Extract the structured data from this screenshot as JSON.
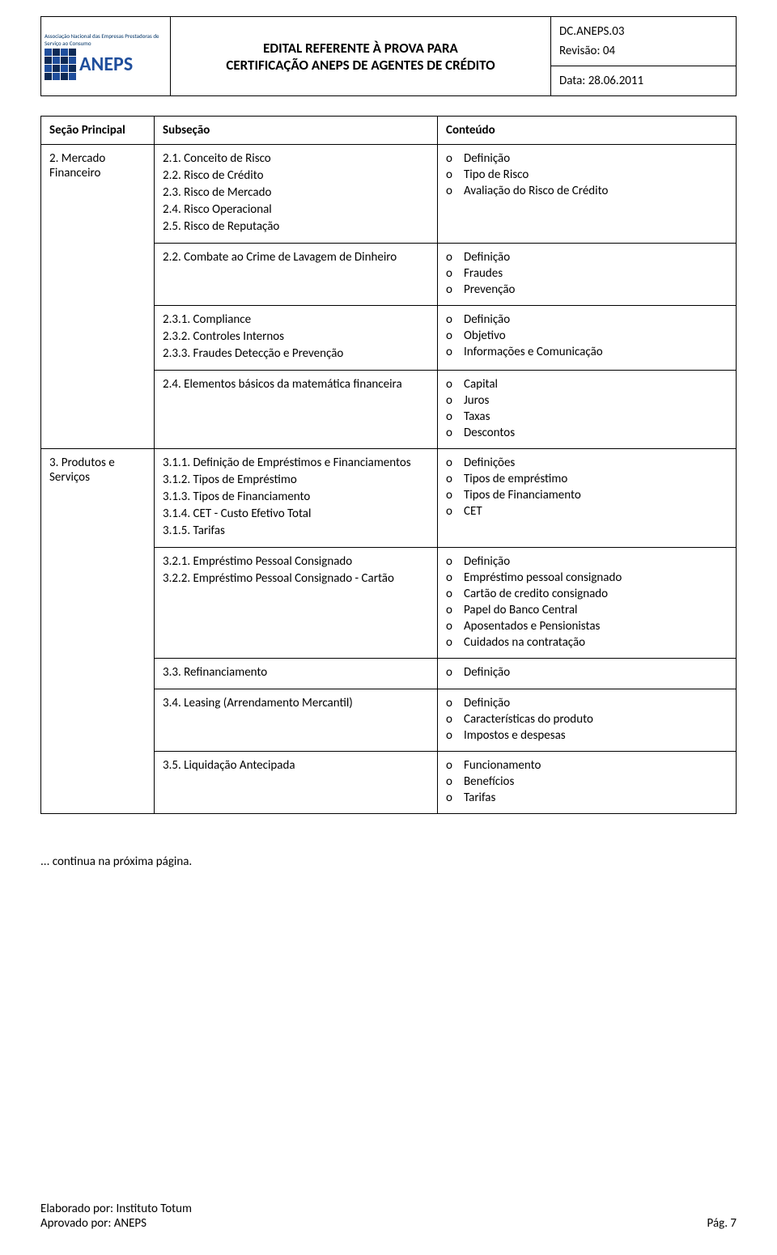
{
  "header": {
    "logo_top": "Associação Nacional das Empresas\nPrestadoras de Serviço ao Consumo",
    "logo_text": "ANEPS",
    "title_line1": "EDITAL REFERENTE À PROVA PARA",
    "title_line2": "CERTIFICAÇÃO ANEPS DE AGENTES DE CRÉDITO",
    "doc_code": "DC.ANEPS.03",
    "revision": "Revisão: 04",
    "date": "Data: 28.06.2011"
  },
  "table": {
    "headers": {
      "c1": "Seção Principal",
      "c2": "Subseção",
      "c3": "Conteúdo"
    },
    "rows": [
      {
        "principal": "2. Mercado Financeiro",
        "sub": [
          "2.1. Conceito de Risco",
          "2.2. Risco de Crédito",
          "2.3. Risco de Mercado",
          "2.4. Risco Operacional",
          "2.5. Risco de Reputação"
        ],
        "cont": [
          "Definição",
          "Tipo de Risco",
          "Avaliação do Risco de Crédito"
        ]
      },
      {
        "principal": "",
        "sub": [
          "2.2. Combate ao Crime de Lavagem de Dinheiro"
        ],
        "cont": [
          "Definição",
          "Fraudes",
          "Prevenção"
        ]
      },
      {
        "principal": "",
        "sub": [
          "2.3.1. Compliance",
          "2.3.2. Controles Internos",
          "2.3.3. Fraudes Detecção e Prevenção"
        ],
        "cont": [
          "Definição",
          "Objetivo",
          "Informações e Comunicação"
        ]
      },
      {
        "principal": "",
        "sub": [
          "2.4. Elementos básicos da matemática financeira"
        ],
        "cont": [
          "Capital",
          "Juros",
          "Taxas",
          "Descontos"
        ]
      },
      {
        "principal": "3. Produtos e Serviços",
        "sub": [
          "3.1.1. Definição de Empréstimos e Financiamentos",
          "3.1.2. Tipos de Empréstimo",
          "3.1.3. Tipos de Financiamento",
          "3.1.4. CET - Custo Efetivo Total",
          "3.1.5. Tarifas"
        ],
        "cont": [
          "Definições",
          "Tipos de empréstimo",
          "Tipos de Financiamento",
          "CET"
        ]
      },
      {
        "principal": "",
        "sub": [
          "3.2.1. Empréstimo Pessoal Consignado",
          "3.2.2. Empréstimo Pessoal Consignado - Cartão"
        ],
        "cont": [
          "Definição",
          "Empréstimo pessoal consignado",
          "Cartão de credito consignado",
          "Papel do Banco Central",
          "Aposentados e Pensionistas",
          "Cuidados na contratação"
        ]
      },
      {
        "principal": "",
        "sub": [
          "3.3. Refinanciamento"
        ],
        "cont": [
          "Definição"
        ]
      },
      {
        "principal": "",
        "sub": [
          "3.4. Leasing (Arrendamento Mercantil)"
        ],
        "cont": [
          "Definição",
          "Características do produto",
          "Impostos e despesas"
        ]
      },
      {
        "principal": "",
        "sub": [
          "3.5. Liquidação Antecipada"
        ],
        "cont": [
          "Funcionamento",
          "Benefícios",
          "Tarifas"
        ]
      }
    ]
  },
  "continue_note": "... continua na próxima página.",
  "footer": {
    "left1": "Elaborado por: Instituto Totum",
    "left2": "Aprovado por: ANEPS",
    "right": "Pág. 7"
  },
  "marker": "o"
}
